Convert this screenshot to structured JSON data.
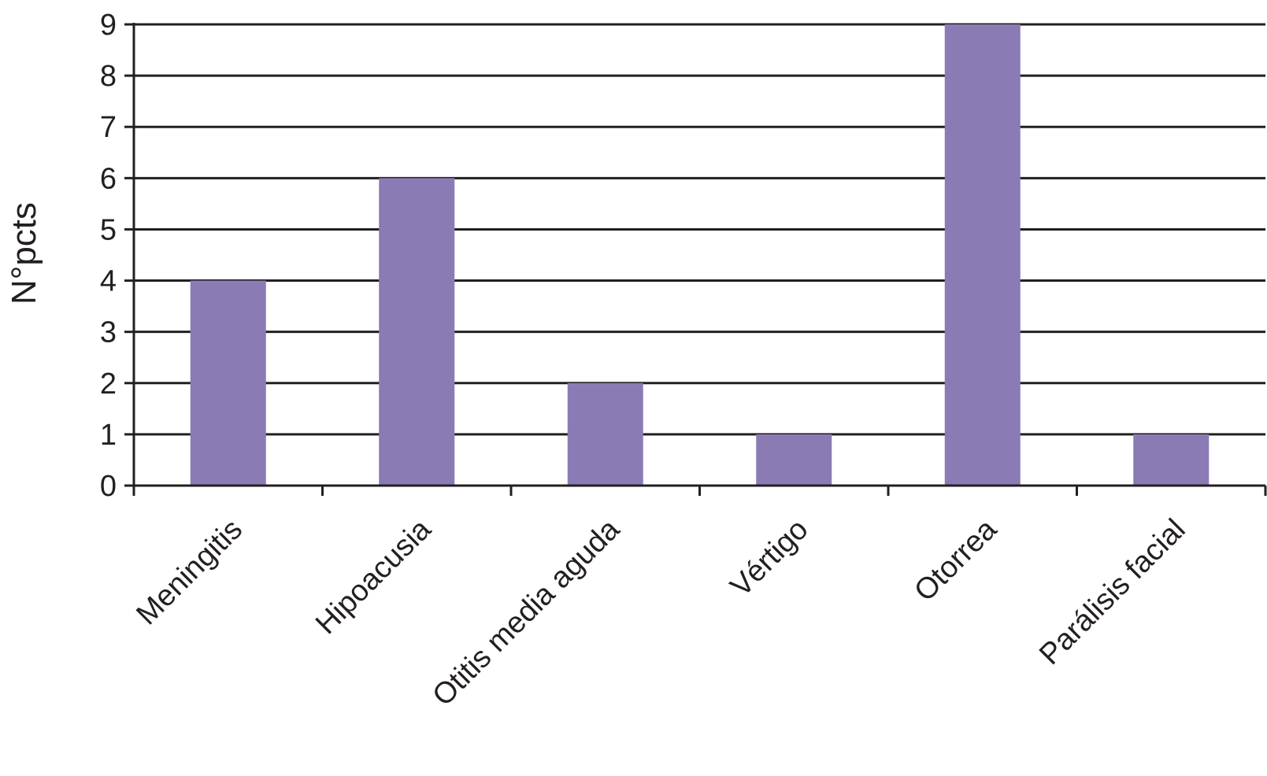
{
  "chart_data": {
    "type": "bar",
    "ylabel": "N°pcts",
    "xlabel": "",
    "categories": [
      "Meningitis",
      "Hipoacusia",
      "Otitis media aguda",
      "Vértigo",
      "Otorrea",
      "Parálisis facial"
    ],
    "values": [
      4,
      6,
      2,
      1,
      9,
      1
    ],
    "ylim": [
      0,
      9
    ],
    "yticks": [
      0,
      1,
      2,
      3,
      4,
      5,
      6,
      7,
      8,
      9
    ],
    "grid": true,
    "legend": "none",
    "bar_color": "#8b7bb4",
    "line_color": "#231f20"
  }
}
